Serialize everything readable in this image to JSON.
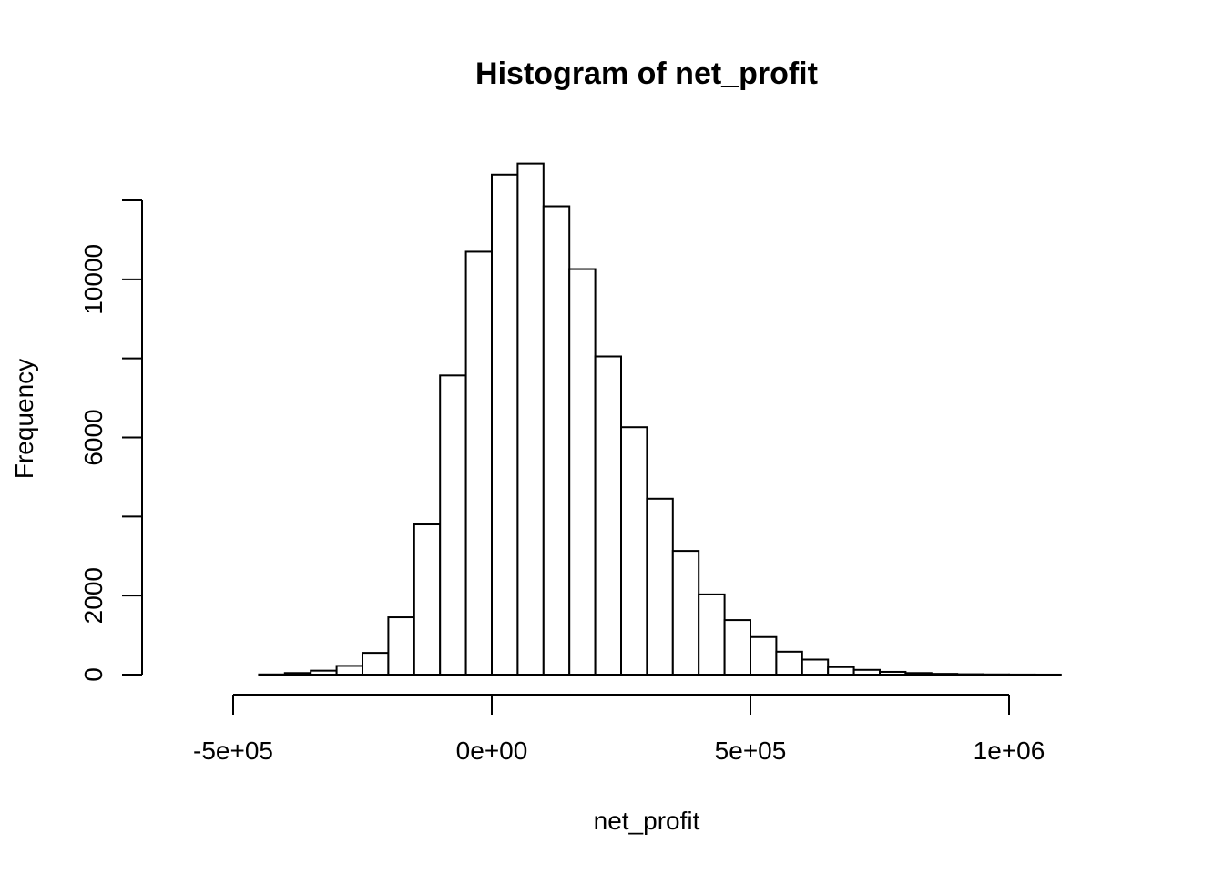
{
  "chart_data": {
    "type": "bar",
    "title": "Histogram of net_profit",
    "xlabel": "net_profit",
    "ylabel": "Frequency",
    "xlim": [
      -500000,
      1000000
    ],
    "ylim": [
      0,
      12000
    ],
    "x_ticks": [
      {
        "value": -500000,
        "label": "-5e+05"
      },
      {
        "value": 0,
        "label": "0e+00"
      },
      {
        "value": 500000,
        "label": "5e+05"
      },
      {
        "value": 1000000,
        "label": "1e+06"
      }
    ],
    "y_ticks": [
      {
        "value": 0,
        "label": "0"
      },
      {
        "value": 2000,
        "label": "2000"
      },
      {
        "value": 4000,
        "label": ""
      },
      {
        "value": 6000,
        "label": "6000"
      },
      {
        "value": 8000,
        "label": ""
      },
      {
        "value": 10000,
        "label": "10000"
      },
      {
        "value": 12000,
        "label": ""
      }
    ],
    "bin_width": 50000,
    "bins": [
      {
        "x0": -600000,
        "x1": -550000,
        "count": 0
      },
      {
        "x0": -550000,
        "x1": -500000,
        "count": 0
      },
      {
        "x0": -500000,
        "x1": -450000,
        "count": 0
      },
      {
        "x0": -450000,
        "x1": -400000,
        "count": 5
      },
      {
        "x0": -400000,
        "x1": -350000,
        "count": 40
      },
      {
        "x0": -350000,
        "x1": -300000,
        "count": 100
      },
      {
        "x0": -300000,
        "x1": -250000,
        "count": 220
      },
      {
        "x0": -250000,
        "x1": -200000,
        "count": 550
      },
      {
        "x0": -200000,
        "x1": -150000,
        "count": 1450
      },
      {
        "x0": -150000,
        "x1": -100000,
        "count": 3800
      },
      {
        "x0": -100000,
        "x1": -50000,
        "count": 7570
      },
      {
        "x0": -50000,
        "x1": 0,
        "count": 10700
      },
      {
        "x0": 0,
        "x1": 50000,
        "count": 12650
      },
      {
        "x0": 50000,
        "x1": 100000,
        "count": 12930
      },
      {
        "x0": 100000,
        "x1": 150000,
        "count": 11850
      },
      {
        "x0": 150000,
        "x1": 200000,
        "count": 10260
      },
      {
        "x0": 200000,
        "x1": 250000,
        "count": 8050
      },
      {
        "x0": 250000,
        "x1": 300000,
        "count": 6260
      },
      {
        "x0": 300000,
        "x1": 350000,
        "count": 4450
      },
      {
        "x0": 350000,
        "x1": 400000,
        "count": 3130
      },
      {
        "x0": 400000,
        "x1": 450000,
        "count": 2030
      },
      {
        "x0": 450000,
        "x1": 500000,
        "count": 1380
      },
      {
        "x0": 500000,
        "x1": 550000,
        "count": 950
      },
      {
        "x0": 550000,
        "x1": 600000,
        "count": 580
      },
      {
        "x0": 600000,
        "x1": 650000,
        "count": 380
      },
      {
        "x0": 650000,
        "x1": 700000,
        "count": 190
      },
      {
        "x0": 700000,
        "x1": 750000,
        "count": 120
      },
      {
        "x0": 750000,
        "x1": 800000,
        "count": 70
      },
      {
        "x0": 800000,
        "x1": 850000,
        "count": 40
      },
      {
        "x0": 850000,
        "x1": 900000,
        "count": 20
      },
      {
        "x0": 900000,
        "x1": 950000,
        "count": 10
      },
      {
        "x0": 950000,
        "x1": 1000000,
        "count": 5
      },
      {
        "x0": 1000000,
        "x1": 1050000,
        "count": 2
      },
      {
        "x0": 1050000,
        "x1": 1100000,
        "count": 1
      },
      {
        "x0": 1100000,
        "x1": 1150000,
        "count": 0
      },
      {
        "x0": 1150000,
        "x1": 1200000,
        "count": 0
      }
    ]
  }
}
